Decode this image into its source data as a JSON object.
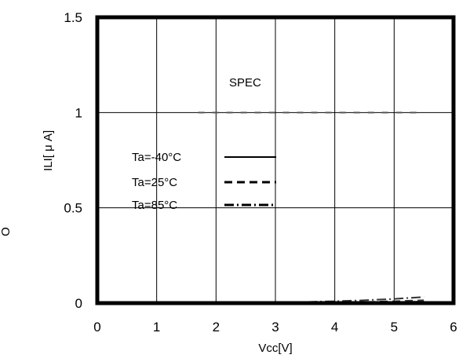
{
  "chart_data": {
    "type": "line",
    "title": "",
    "xlabel": "Vcc[V]",
    "ylabel": "ILI[ μ A]",
    "side_label": "O",
    "xlim": [
      0,
      6
    ],
    "ylim": [
      0,
      1.5
    ],
    "x_ticks": [
      "0",
      "1",
      "2",
      "3",
      "4",
      "5",
      "6"
    ],
    "y_ticks": [
      "0",
      "0.5",
      "1",
      "1.5"
    ],
    "grid": true,
    "spec": {
      "label": "SPEC",
      "x": [
        1.7,
        5.5
      ],
      "y": 1.0
    },
    "legend_position": "center-left",
    "series": [
      {
        "name": "Ta=-40°C",
        "style": "solid",
        "x": [
          1.8,
          2.5,
          3.0,
          3.5,
          4.0,
          4.5,
          5.0,
          5.5
        ],
        "y": [
          0.0,
          0.0,
          0.0,
          0.0,
          0.002,
          0.004,
          0.006,
          0.008
        ]
      },
      {
        "name": "Ta=25°C",
        "style": "dashed",
        "x": [
          1.8,
          2.5,
          3.0,
          3.5,
          4.0,
          4.5,
          5.0,
          5.5
        ],
        "y": [
          0.0,
          0.0,
          0.0,
          0.001,
          0.003,
          0.006,
          0.01,
          0.015
        ]
      },
      {
        "name": "Ta=85°C",
        "style": "dashdot",
        "x": [
          1.8,
          2.5,
          3.0,
          3.5,
          4.0,
          4.5,
          5.0,
          5.5
        ],
        "y": [
          0.002,
          0.003,
          0.004,
          0.006,
          0.01,
          0.015,
          0.022,
          0.032
        ]
      }
    ]
  }
}
